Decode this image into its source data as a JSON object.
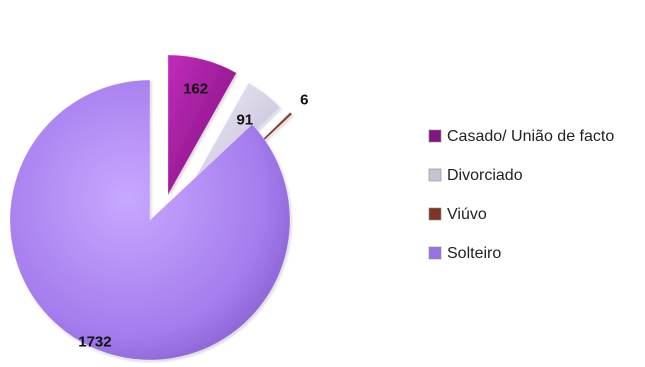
{
  "chart_data": {
    "type": "pie",
    "title": "",
    "slices": [
      {
        "label": "Casado/ União de facto",
        "value": 162,
        "color": "#a2169c",
        "legend_color": "#7f1780"
      },
      {
        "label": "Divorciado",
        "value": 91,
        "color": "#dcd6ea",
        "legend_color": "#c7c2d6"
      },
      {
        "label": "Viúvo",
        "value": 6,
        "color": "#8b3a2b",
        "legend_color": "#7d3526"
      },
      {
        "label": "Solteiro",
        "value": 1732,
        "color": "#a77ff0",
        "legend_color": "#9a73df"
      }
    ],
    "legend": {
      "position": "right"
    },
    "data_labels": true,
    "exploded": true
  }
}
